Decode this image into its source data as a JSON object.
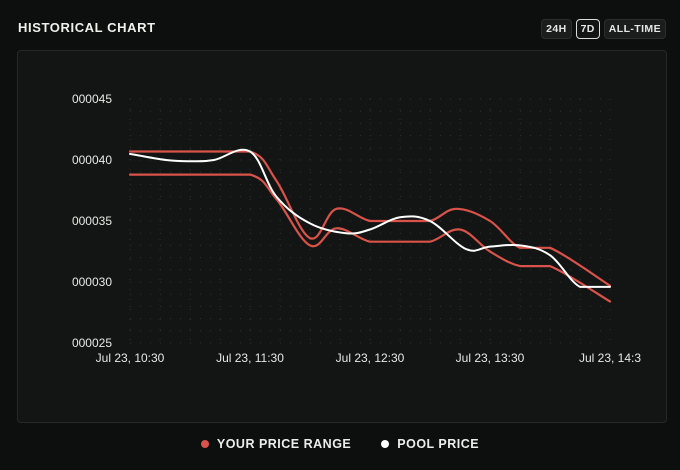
{
  "header": {
    "title": "HISTORICAL CHART"
  },
  "timeframes": [
    {
      "label": "24H",
      "active": false
    },
    {
      "label": "7D",
      "active": true
    },
    {
      "label": "ALL-TIME",
      "active": false
    }
  ],
  "legend": {
    "range_label": "YOUR PRICE RANGE",
    "pool_label": "POOL PRICE"
  },
  "colors": {
    "range": "#d9534a",
    "pool": "#ffffff",
    "grid": "#2e332f",
    "tick_text": "#e6e8e6"
  },
  "chart_data": {
    "type": "line",
    "xlabel": "",
    "ylabel": "",
    "y_tick_labels": [
      "000045",
      "000040",
      "000035",
      "000030",
      "000025"
    ],
    "y_ticks": [
      4.5e-05,
      4e-05,
      3.5e-05,
      3e-05,
      2.5e-05
    ],
    "ylim": [
      2.5e-05,
      4.5e-05
    ],
    "x_tick_labels": [
      "Jul 23, 10:30",
      "Jul 23, 11:30",
      "Jul 23, 12:30",
      "Jul 23, 13:30",
      "Jul 23, 14:3"
    ],
    "x_ticks": [
      10.5,
      11.5,
      12.5,
      13.5,
      14.5
    ],
    "xlim": [
      10.5,
      14.5
    ],
    "grid": true,
    "series": [
      {
        "name": "YOUR PRICE RANGE (upper)",
        "color": "#d9534a",
        "x": [
          10.5,
          11.0,
          11.5,
          11.72,
          12.0,
          12.22,
          12.5,
          12.75,
          13.0,
          13.22,
          13.5,
          13.75,
          14.0,
          14.5
        ],
        "y": [
          4.07e-05,
          4.07e-05,
          4.07e-05,
          3.83e-05,
          3.36e-05,
          3.6e-05,
          3.5e-05,
          3.5e-05,
          3.5e-05,
          3.6e-05,
          3.5e-05,
          3.28e-05,
          3.28e-05,
          2.97e-05
        ]
      },
      {
        "name": "YOUR PRICE RANGE (lower)",
        "color": "#d9534a",
        "x": [
          10.5,
          11.0,
          11.5,
          11.72,
          12.0,
          12.22,
          12.5,
          12.75,
          13.0,
          13.25,
          13.5,
          13.75,
          14.0,
          14.5
        ],
        "y": [
          3.88e-05,
          3.88e-05,
          3.88e-05,
          3.68e-05,
          3.3e-05,
          3.44e-05,
          3.33e-05,
          3.33e-05,
          3.33e-05,
          3.43e-05,
          3.25e-05,
          3.13e-05,
          3.13e-05,
          2.84e-05
        ]
      },
      {
        "name": "POOL PRICE",
        "color": "#ffffff",
        "x": [
          10.5,
          10.8,
          11.0,
          11.2,
          11.5,
          11.72,
          12.0,
          12.3,
          12.5,
          12.75,
          13.0,
          13.3,
          13.5,
          13.75,
          14.0,
          14.25,
          14.5
        ],
        "y": [
          4.05e-05,
          4e-05,
          3.99e-05,
          4e-05,
          4.07e-05,
          3.7e-05,
          3.48e-05,
          3.4e-05,
          3.43e-05,
          3.53e-05,
          3.5e-05,
          3.27e-05,
          3.29e-05,
          3.3e-05,
          3.22e-05,
          2.96e-05,
          2.96e-05
        ]
      }
    ]
  }
}
